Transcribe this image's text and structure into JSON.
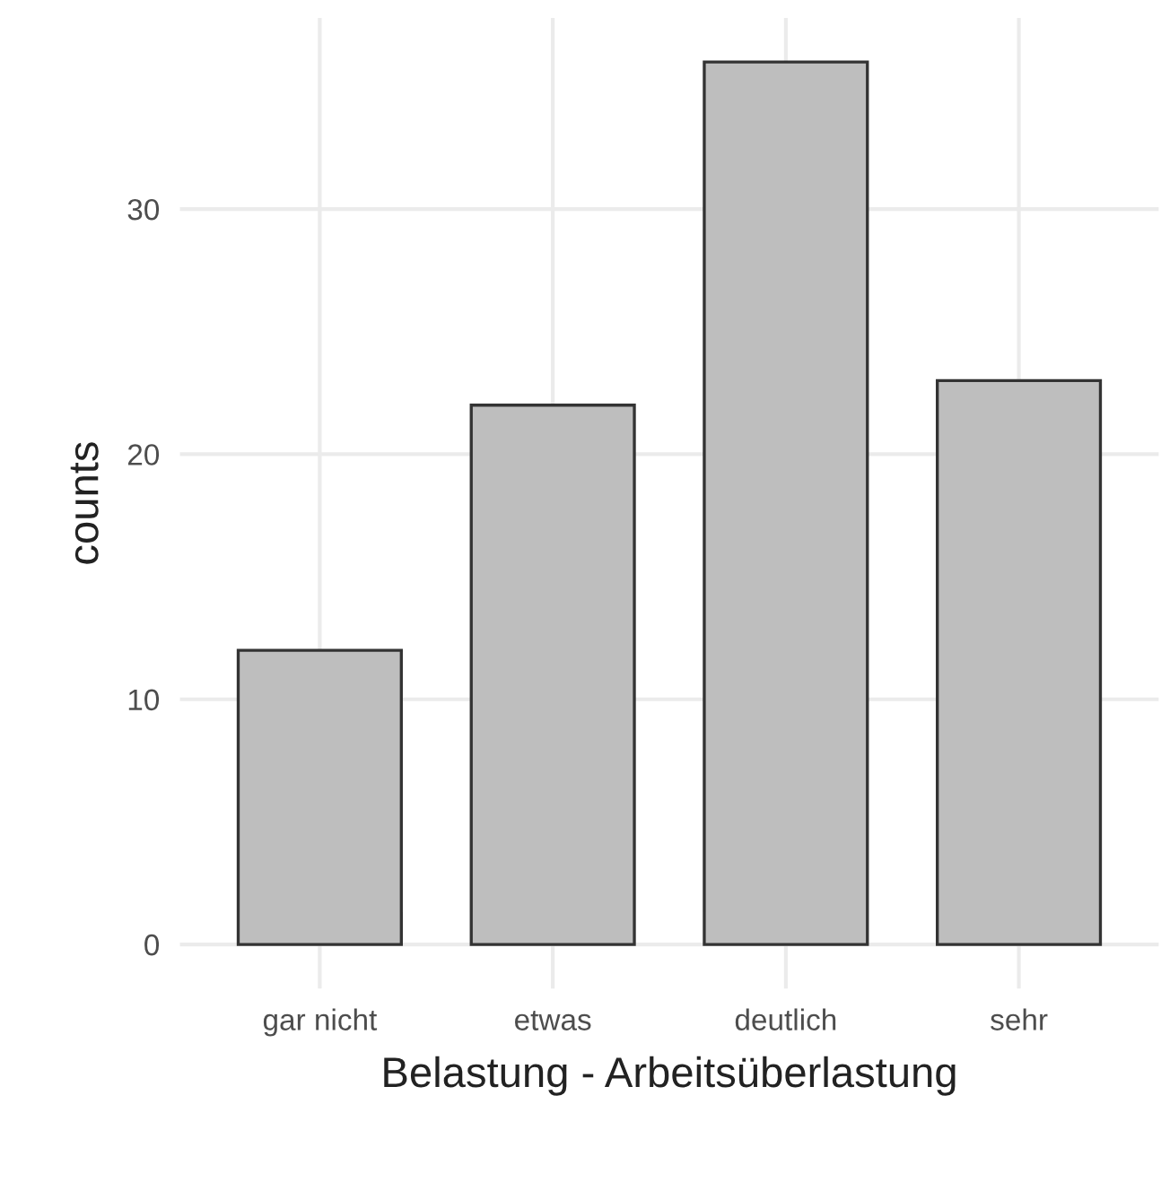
{
  "chart_data": {
    "type": "bar",
    "xlabel": "Belastung - Arbeitsüberlastung",
    "ylabel": "counts",
    "categories": [
      "gar nicht",
      "etwas",
      "deutlich",
      "sehr"
    ],
    "values": [
      12,
      22,
      36,
      23
    ],
    "color": "#bebebe",
    "ylim": [
      -1.8,
      37.8
    ],
    "yticks": [
      0,
      10,
      20,
      30
    ],
    "grid": true,
    "legend": false
  }
}
